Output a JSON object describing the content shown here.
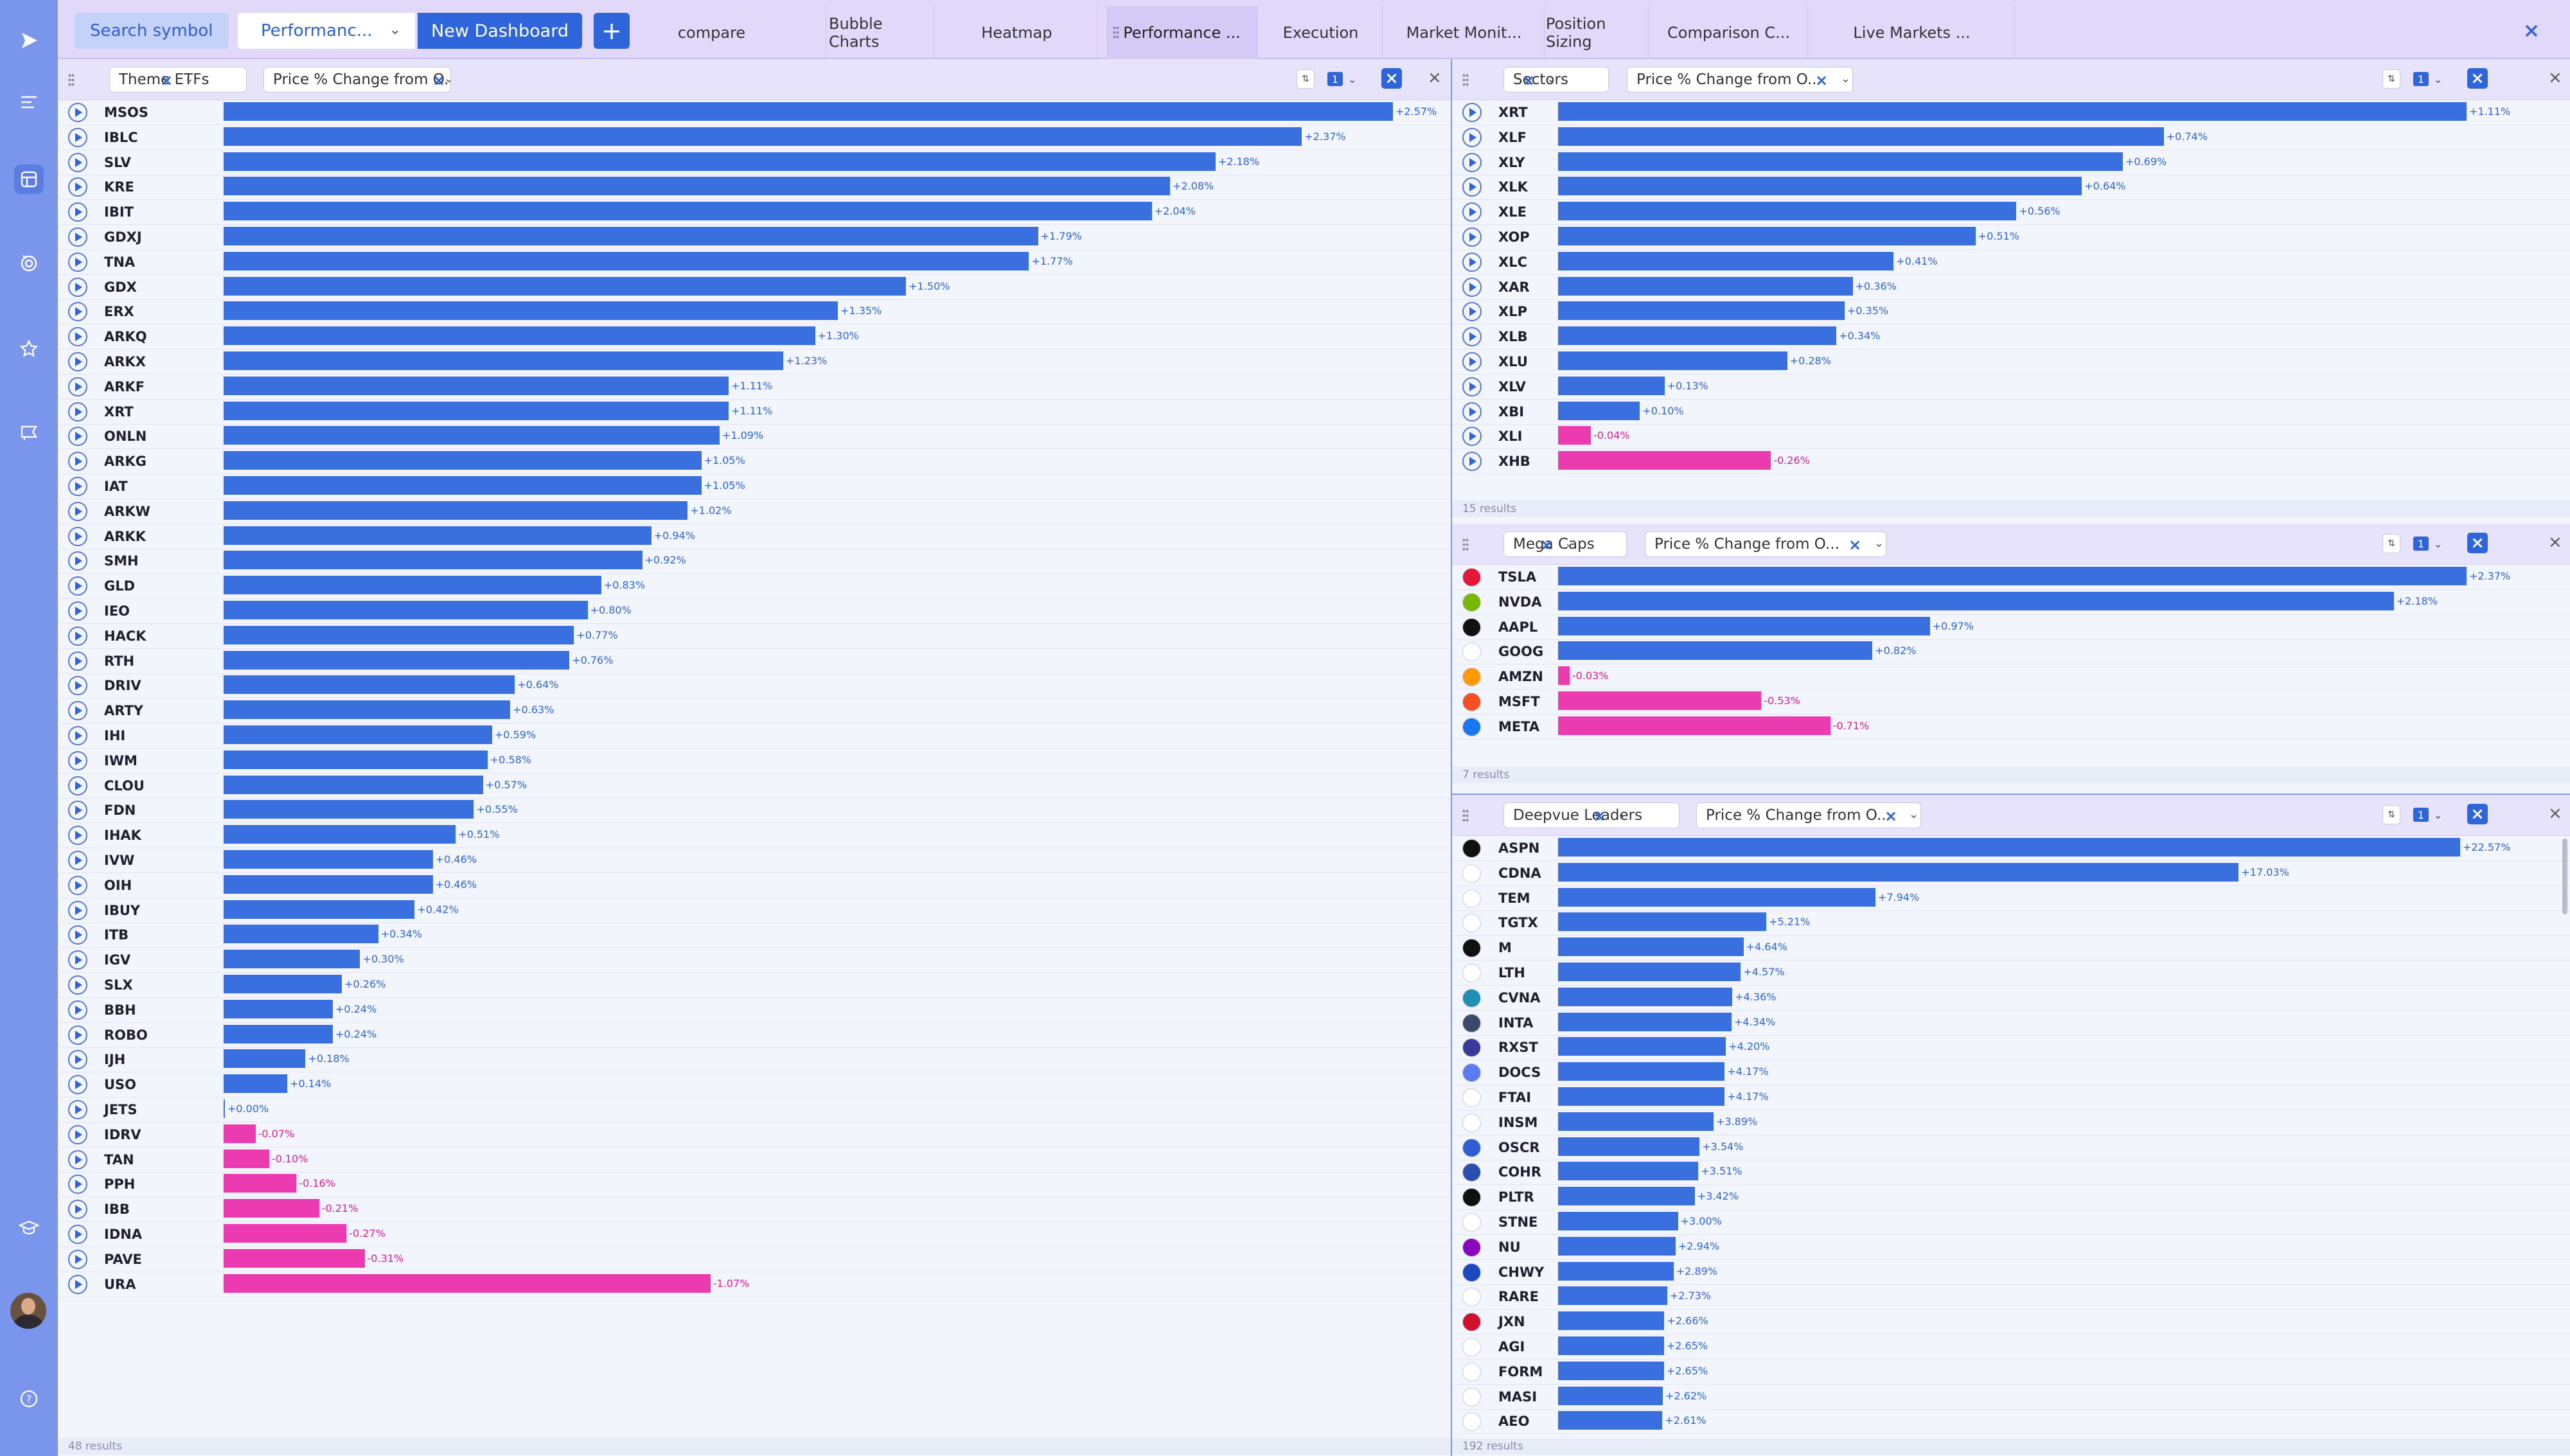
{
  "topbar": {
    "search_label": "Search symbol",
    "dashboard_select": "Performanc...",
    "new_dashboard": "New Dashboard",
    "add_label": "+",
    "tabs": [
      "compare",
      "Bubble Charts",
      "Heatmap",
      "Performance ...",
      "Execution",
      "Market Monit...",
      "Position Sizing",
      "Comparison C...",
      "Live Markets ..."
    ]
  },
  "panels": [
    {
      "list": "Theme ETFs",
      "metric": "Price % Change from O...",
      "count": "1",
      "footer": "48 results",
      "logos": false,
      "rows": [
        [
          "MSOS",
          2.57,
          "+2.57%"
        ],
        [
          "IBLC",
          2.37,
          "+2.37%"
        ],
        [
          "SLV",
          2.18,
          "+2.18%"
        ],
        [
          "KRE",
          2.08,
          "+2.08%"
        ],
        [
          "IBIT",
          2.04,
          "+2.04%"
        ],
        [
          "GDXJ",
          1.79,
          "+1.79%"
        ],
        [
          "TNA",
          1.77,
          "+1.77%"
        ],
        [
          "GDX",
          1.5,
          "+1.50%"
        ],
        [
          "ERX",
          1.35,
          "+1.35%"
        ],
        [
          "ARKQ",
          1.3,
          "+1.30%"
        ],
        [
          "ARKX",
          1.23,
          "+1.23%"
        ],
        [
          "ARKF",
          1.11,
          "+1.11%"
        ],
        [
          "XRT",
          1.11,
          "+1.11%"
        ],
        [
          "ONLN",
          1.09,
          "+1.09%"
        ],
        [
          "ARKG",
          1.05,
          "+1.05%"
        ],
        [
          "IAT",
          1.05,
          "+1.05%"
        ],
        [
          "ARKW",
          1.02,
          "+1.02%"
        ],
        [
          "ARKK",
          0.94,
          "+0.94%"
        ],
        [
          "SMH",
          0.92,
          "+0.92%"
        ],
        [
          "GLD",
          0.83,
          "+0.83%"
        ],
        [
          "IEO",
          0.8,
          "+0.80%"
        ],
        [
          "HACK",
          0.77,
          "+0.77%"
        ],
        [
          "RTH",
          0.76,
          "+0.76%"
        ],
        [
          "DRIV",
          0.64,
          "+0.64%"
        ],
        [
          "ARTY",
          0.63,
          "+0.63%"
        ],
        [
          "IHI",
          0.59,
          "+0.59%"
        ],
        [
          "IWM",
          0.58,
          "+0.58%"
        ],
        [
          "CLOU",
          0.57,
          "+0.57%"
        ],
        [
          "FDN",
          0.55,
          "+0.55%"
        ],
        [
          "IHAK",
          0.51,
          "+0.51%"
        ],
        [
          "IVW",
          0.46,
          "+0.46%"
        ],
        [
          "OIH",
          0.46,
          "+0.46%"
        ],
        [
          "IBUY",
          0.42,
          "+0.42%"
        ],
        [
          "ITB",
          0.34,
          "+0.34%"
        ],
        [
          "IGV",
          0.3,
          "+0.30%"
        ],
        [
          "SLX",
          0.26,
          "+0.26%"
        ],
        [
          "BBH",
          0.24,
          "+0.24%"
        ],
        [
          "ROBO",
          0.24,
          "+0.24%"
        ],
        [
          "IJH",
          0.18,
          "+0.18%"
        ],
        [
          "USO",
          0.14,
          "+0.14%"
        ],
        [
          "JETS",
          0.0,
          "+0.00%"
        ],
        [
          "IDRV",
          -0.07,
          "-0.07%"
        ],
        [
          "TAN",
          -0.1,
          "-0.10%"
        ],
        [
          "PPH",
          -0.16,
          "-0.16%"
        ],
        [
          "IBB",
          -0.21,
          "-0.21%"
        ],
        [
          "IDNA",
          -0.27,
          "-0.27%"
        ],
        [
          "PAVE",
          -0.31,
          "-0.31%"
        ],
        [
          "URA",
          -1.07,
          "-1.07%"
        ]
      ]
    },
    {
      "list": "Sectors",
      "metric": "Price % Change from O...",
      "count": "1",
      "footer": "15 results",
      "logos": false,
      "rows": [
        [
          "XRT",
          1.11,
          "+1.11%"
        ],
        [
          "XLF",
          0.74,
          "+0.74%"
        ],
        [
          "XLY",
          0.69,
          "+0.69%"
        ],
        [
          "XLK",
          0.64,
          "+0.64%"
        ],
        [
          "XLE",
          0.56,
          "+0.56%"
        ],
        [
          "XOP",
          0.51,
          "+0.51%"
        ],
        [
          "XLC",
          0.41,
          "+0.41%"
        ],
        [
          "XAR",
          0.36,
          "+0.36%"
        ],
        [
          "XLP",
          0.35,
          "+0.35%"
        ],
        [
          "XLB",
          0.34,
          "+0.34%"
        ],
        [
          "XLU",
          0.28,
          "+0.28%"
        ],
        [
          "XLV",
          0.13,
          "+0.13%"
        ],
        [
          "XBI",
          0.1,
          "+0.10%"
        ],
        [
          "XLI",
          -0.04,
          "-0.04%"
        ],
        [
          "XHB",
          -0.26,
          "-0.26%"
        ]
      ]
    },
    {
      "list": "Mega Caps",
      "metric": "Price % Change from O...",
      "count": "1",
      "footer": "7 results",
      "logos": true,
      "rows": [
        [
          "TSLA",
          2.37,
          "+2.37%"
        ],
        [
          "NVDA",
          2.18,
          "+2.18%"
        ],
        [
          "AAPL",
          0.97,
          "+0.97%"
        ],
        [
          "GOOG",
          0.82,
          "+0.82%"
        ],
        [
          "AMZN",
          -0.03,
          "-0.03%"
        ],
        [
          "MSFT",
          -0.53,
          "-0.53%"
        ],
        [
          "META",
          -0.71,
          "-0.71%"
        ]
      ]
    },
    {
      "list": "Deepvue Leaders",
      "metric": "Price % Change from O...",
      "count": "1",
      "footer": "192 results",
      "logos": true,
      "rows": [
        [
          "ASPN",
          22.57,
          "+22.57%"
        ],
        [
          "CDNA",
          17.03,
          "+17.03%"
        ],
        [
          "TEM",
          7.94,
          "+7.94%"
        ],
        [
          "TGTX",
          5.21,
          "+5.21%"
        ],
        [
          "M",
          4.64,
          "+4.64%"
        ],
        [
          "LTH",
          4.57,
          "+4.57%"
        ],
        [
          "CVNA",
          4.36,
          "+4.36%"
        ],
        [
          "INTA",
          4.34,
          "+4.34%"
        ],
        [
          "RXST",
          4.2,
          "+4.20%"
        ],
        [
          "DOCS",
          4.17,
          "+4.17%"
        ],
        [
          "FTAI",
          4.17,
          "+4.17%"
        ],
        [
          "INSM",
          3.89,
          "+3.89%"
        ],
        [
          "OSCR",
          3.54,
          "+3.54%"
        ],
        [
          "COHR",
          3.51,
          "+3.51%"
        ],
        [
          "PLTR",
          3.42,
          "+3.42%"
        ],
        [
          "STNE",
          3.0,
          "+3.00%"
        ],
        [
          "NU",
          2.94,
          "+2.94%"
        ],
        [
          "CHWY",
          2.89,
          "+2.89%"
        ],
        [
          "RARE",
          2.73,
          "+2.73%"
        ],
        [
          "JXN",
          2.66,
          "+2.66%"
        ],
        [
          "AGI",
          2.65,
          "+2.65%"
        ],
        [
          "FORM",
          2.65,
          "+2.65%"
        ],
        [
          "MASI",
          2.62,
          "+2.62%"
        ],
        [
          "AEO",
          2.61,
          "+2.61%"
        ]
      ]
    }
  ],
  "logo_colors": {
    "TSLA": "#e31937",
    "NVDA": "#76b900",
    "AAPL": "#111111",
    "GOOG": "#ffffff",
    "AMZN": "#ff9900",
    "MSFT": "#f25022",
    "META": "#1877f2",
    "ASPN": "#111111",
    "CDNA": "#ffffff",
    "TEM": "#ffffff",
    "TGTX": "#ffffff",
    "M": "#111111",
    "LTH": "#ffffff",
    "CVNA": "#1f8fb8",
    "INTA": "#3a4a6a",
    "RXST": "#3a3a9a",
    "DOCS": "#5a7cf0",
    "FTAI": "#ffffff",
    "INSM": "#ffffff",
    "OSCR": "#2f5fd5",
    "COHR": "#2a4fb0",
    "PLTR": "#111111",
    "STNE": "#ffffff",
    "NU": "#8a05be",
    "CHWY": "#1c49c2",
    "RARE": "#ffffff",
    "JXN": "#d0102c",
    "AGI": "#ffffff",
    "FORM": "#ffffff",
    "MASI": "#ffffff",
    "AEO": "#ffffff"
  },
  "colors": {
    "positive": "#3a6fe0",
    "negative": "#ec3bb0",
    "accent": "#2f65da"
  }
}
